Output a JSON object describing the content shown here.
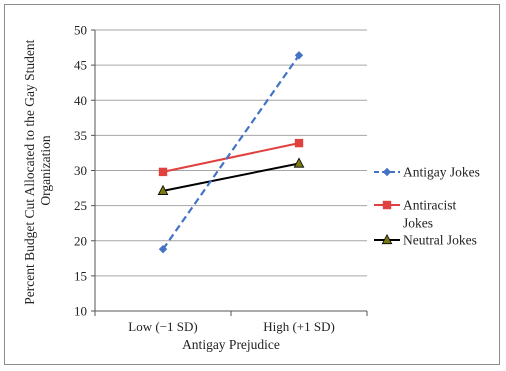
{
  "chart_data": {
    "type": "line",
    "categories": [
      "Low (−1 SD)",
      "High (+1 SD)"
    ],
    "xlabel": "Antigay Prejudice",
    "ylabel_lines": [
      "Percent Budget Cut Allocated to the Gay Student",
      "Organization"
    ],
    "ylim": [
      10,
      50
    ],
    "yticks": [
      10,
      15,
      20,
      25,
      30,
      35,
      40,
      45,
      50
    ],
    "grid": true,
    "legend_position": "right",
    "series": [
      {
        "name": "Antigay Jokes",
        "values": [
          18.8,
          46.4
        ],
        "color": "#4472c4",
        "dash": "dashed",
        "marker": "diamond"
      },
      {
        "name": "Antiracist Jokes",
        "name_lines": [
          "Antiracist",
          "Jokes"
        ],
        "values": [
          29.8,
          33.9
        ],
        "color": "#e0403e",
        "dash": "solid",
        "marker": "square"
      },
      {
        "name": "Neutral Jokes",
        "values": [
          27.1,
          31.0
        ],
        "color": "#000000",
        "dash": "solid",
        "marker": "triangle"
      }
    ]
  }
}
